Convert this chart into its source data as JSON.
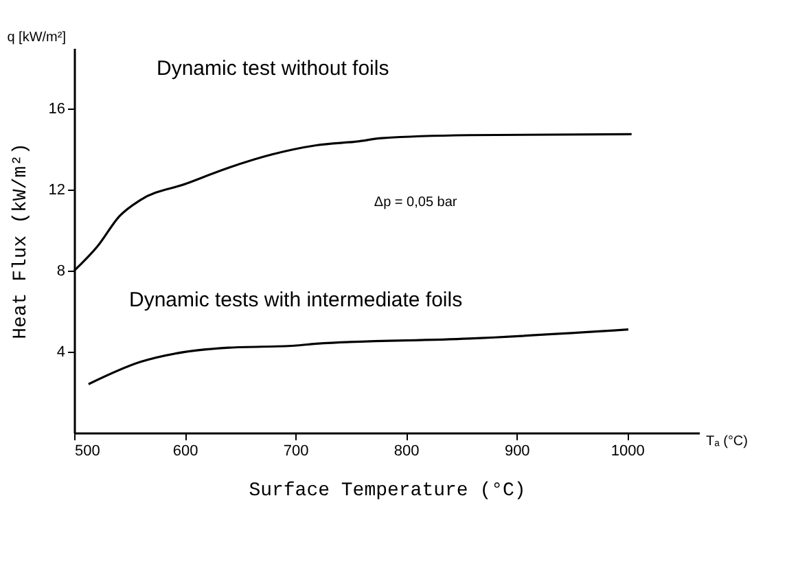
{
  "chart_data": {
    "type": "line",
    "xlabel": "Surface Temperature (°C)",
    "ylabel": "Heat Flux (kW/m²)",
    "xlim": [
      500,
      1065
    ],
    "ylim": [
      0,
      19
    ],
    "xticks": [
      500,
      600,
      700,
      800,
      900,
      1000
    ],
    "yticks": [
      4,
      8,
      12,
      16
    ],
    "grid": false,
    "legend": false,
    "marker": "none",
    "line_style": "solid",
    "annotations": [
      "q [kW/m²]",
      "Tₐ (°C)",
      "Δp = 0,05 bar"
    ],
    "series": [
      {
        "name": "Dynamic test without foils",
        "color": "#000000",
        "x": [
          500,
          521,
          541,
          560,
          601,
          640,
          679,
          719,
          758,
          778,
          857,
          1004
        ],
        "values": [
          8,
          9.2,
          10.7,
          11.5,
          12.3,
          13.1,
          13.75,
          14.2,
          14.4,
          14.55,
          14.7,
          14.75
        ]
      },
      {
        "name": "Dynamic tests with intermediate foils",
        "color": "#000000",
        "x": [
          513,
          560,
          601,
          640,
          699,
          719,
          857,
          1001
        ],
        "values": [
          2.4,
          3.5,
          4.0,
          4.2,
          4.3,
          4.4,
          4.65,
          5.1
        ]
      }
    ]
  }
}
